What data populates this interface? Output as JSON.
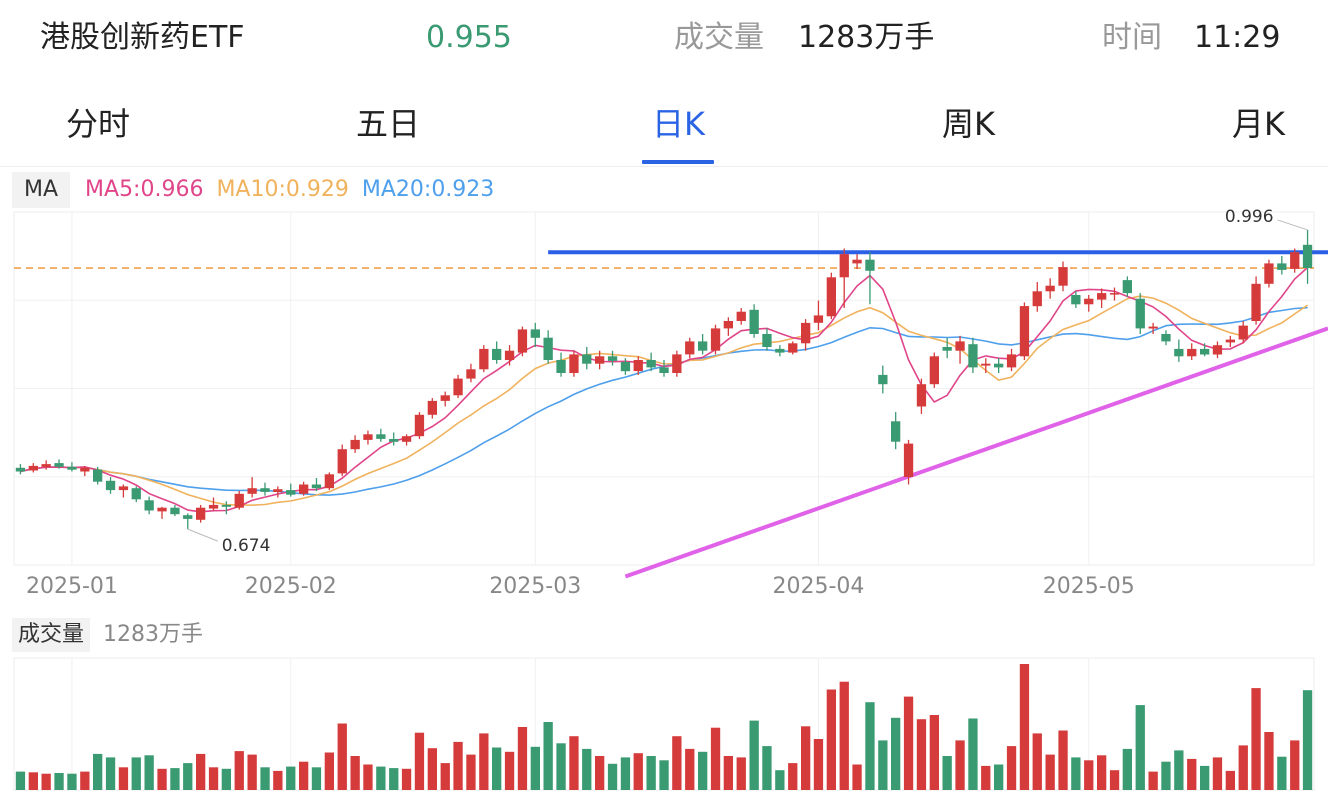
{
  "header": {
    "name": "港股创新药ETF",
    "price": "0.955",
    "volume_label": "成交量",
    "volume_value": "1283万手",
    "time_label": "时间",
    "time_value": "11:29"
  },
  "tabs": [
    {
      "label": "分时",
      "active": false
    },
    {
      "label": "五日",
      "active": false
    },
    {
      "label": "日K",
      "active": true
    },
    {
      "label": "周K",
      "active": false
    },
    {
      "label": "月K",
      "active": false
    }
  ],
  "ma_legend": {
    "tag": "MA",
    "ma5": "MA5:0.966",
    "ma10": "MA10:0.929",
    "ma20": "MA20:0.923"
  },
  "volume_legend": {
    "tag": "成交量",
    "value": "1283万手"
  },
  "colors": {
    "up": "#d63b3b",
    "down": "#3a9a72",
    "price": "#3a9a72",
    "accent": "#2a63e4",
    "ma5": "#e0458a",
    "ma10": "#f0b25c",
    "ma20": "#4e9fec",
    "resistance_line": "#2a5fe6",
    "support_line": "#e062e8",
    "ref_line": "#f0a04b"
  },
  "chart_data": {
    "type": "candlestick",
    "x_ticks": [
      "2025-01",
      "2025-02",
      "2025-03",
      "2025-04",
      "2025-05"
    ],
    "annotations": {
      "high_label": "0.996",
      "low_label": "0.674"
    },
    "ohlc": [
      [
        0.74,
        0.744,
        0.733,
        0.736
      ],
      [
        0.737,
        0.745,
        0.735,
        0.742
      ],
      [
        0.741,
        0.748,
        0.738,
        0.744
      ],
      [
        0.745,
        0.749,
        0.739,
        0.741
      ],
      [
        0.741,
        0.746,
        0.736,
        0.738
      ],
      [
        0.736,
        0.742,
        0.731,
        0.74
      ],
      [
        0.738,
        0.741,
        0.722,
        0.725
      ],
      [
        0.726,
        0.73,
        0.712,
        0.716
      ],
      [
        0.716,
        0.722,
        0.708,
        0.72
      ],
      [
        0.718,
        0.72,
        0.703,
        0.706
      ],
      [
        0.705,
        0.709,
        0.69,
        0.694
      ],
      [
        0.693,
        0.698,
        0.685,
        0.697
      ],
      [
        0.697,
        0.7,
        0.688,
        0.69
      ],
      [
        0.689,
        0.691,
        0.674,
        0.685
      ],
      [
        0.684,
        0.7,
        0.681,
        0.697
      ],
      [
        0.696,
        0.708,
        0.694,
        0.7
      ],
      [
        0.7,
        0.704,
        0.69,
        0.698
      ],
      [
        0.697,
        0.715,
        0.695,
        0.712
      ],
      [
        0.712,
        0.73,
        0.708,
        0.718
      ],
      [
        0.718,
        0.724,
        0.71,
        0.714
      ],
      [
        0.714,
        0.72,
        0.708,
        0.717
      ],
      [
        0.716,
        0.723,
        0.709,
        0.711
      ],
      [
        0.712,
        0.725,
        0.71,
        0.722
      ],
      [
        0.722,
        0.729,
        0.715,
        0.718
      ],
      [
        0.718,
        0.735,
        0.716,
        0.733
      ],
      [
        0.734,
        0.765,
        0.731,
        0.76
      ],
      [
        0.76,
        0.775,
        0.756,
        0.77
      ],
      [
        0.77,
        0.78,
        0.765,
        0.776
      ],
      [
        0.776,
        0.782,
        0.768,
        0.771
      ],
      [
        0.771,
        0.778,
        0.764,
        0.768
      ],
      [
        0.768,
        0.776,
        0.764,
        0.774
      ],
      [
        0.774,
        0.8,
        0.771,
        0.797
      ],
      [
        0.797,
        0.815,
        0.793,
        0.812
      ],
      [
        0.812,
        0.822,
        0.806,
        0.818
      ],
      [
        0.818,
        0.84,
        0.815,
        0.836
      ],
      [
        0.836,
        0.852,
        0.832,
        0.846
      ],
      [
        0.846,
        0.872,
        0.843,
        0.868
      ],
      [
        0.868,
        0.876,
        0.852,
        0.856
      ],
      [
        0.856,
        0.872,
        0.85,
        0.866
      ],
      [
        0.864,
        0.892,
        0.86,
        0.889
      ],
      [
        0.889,
        0.896,
        0.87,
        0.88
      ],
      [
        0.88,
        0.888,
        0.852,
        0.856
      ],
      [
        0.856,
        0.864,
        0.838,
        0.842
      ],
      [
        0.842,
        0.866,
        0.838,
        0.862
      ],
      [
        0.862,
        0.87,
        0.846,
        0.852
      ],
      [
        0.852,
        0.866,
        0.846,
        0.86
      ],
      [
        0.86,
        0.866,
        0.85,
        0.855
      ],
      [
        0.854,
        0.858,
        0.84,
        0.844
      ],
      [
        0.844,
        0.86,
        0.84,
        0.856
      ],
      [
        0.856,
        0.864,
        0.844,
        0.848
      ],
      [
        0.848,
        0.856,
        0.838,
        0.842
      ],
      [
        0.842,
        0.866,
        0.838,
        0.862
      ],
      [
        0.862,
        0.88,
        0.858,
        0.876
      ],
      [
        0.876,
        0.884,
        0.862,
        0.866
      ],
      [
        0.866,
        0.894,
        0.862,
        0.89
      ],
      [
        0.89,
        0.902,
        0.882,
        0.898
      ],
      [
        0.898,
        0.912,
        0.894,
        0.908
      ],
      [
        0.91,
        0.916,
        0.88,
        0.884
      ],
      [
        0.884,
        0.89,
        0.866,
        0.87
      ],
      [
        0.868,
        0.872,
        0.86,
        0.864
      ],
      [
        0.864,
        0.876,
        0.862,
        0.874
      ],
      [
        0.874,
        0.9,
        0.866,
        0.896
      ],
      [
        0.896,
        0.92,
        0.888,
        0.904
      ],
      [
        0.903,
        0.95,
        0.9,
        0.945
      ],
      [
        0.945,
        0.976,
        0.912,
        0.97
      ],
      [
        0.96,
        0.97,
        0.954,
        0.964
      ],
      [
        0.964,
        0.972,
        0.916,
        0.952
      ],
      [
        0.84,
        0.85,
        0.82,
        0.83
      ],
      [
        0.79,
        0.8,
        0.76,
        0.768
      ],
      [
        0.73,
        0.77,
        0.722,
        0.766
      ],
      [
        0.806,
        0.836,
        0.798,
        0.83
      ],
      [
        0.83,
        0.864,
        0.826,
        0.86
      ],
      [
        0.87,
        0.88,
        0.858,
        0.866
      ],
      [
        0.866,
        0.882,
        0.852,
        0.876
      ],
      [
        0.873,
        0.88,
        0.842,
        0.848
      ],
      [
        0.85,
        0.858,
        0.842,
        0.852
      ],
      [
        0.852,
        0.858,
        0.842,
        0.848
      ],
      [
        0.848,
        0.868,
        0.844,
        0.862
      ],
      [
        0.86,
        0.918,
        0.856,
        0.914
      ],
      [
        0.914,
        0.94,
        0.908,
        0.93
      ],
      [
        0.93,
        0.944,
        0.922,
        0.936
      ],
      [
        0.936,
        0.962,
        0.93,
        0.956
      ],
      [
        0.926,
        0.93,
        0.912,
        0.916
      ],
      [
        0.916,
        0.926,
        0.908,
        0.922
      ],
      [
        0.921,
        0.933,
        0.912,
        0.928
      ],
      [
        0.928,
        0.934,
        0.92,
        0.928
      ],
      [
        0.942,
        0.946,
        0.924,
        0.928
      ],
      [
        0.922,
        0.928,
        0.884,
        0.89
      ],
      [
        0.89,
        0.896,
        0.884,
        0.892
      ],
      [
        0.884,
        0.888,
        0.872,
        0.876
      ],
      [
        0.868,
        0.878,
        0.854,
        0.86
      ],
      [
        0.86,
        0.874,
        0.856,
        0.868
      ],
      [
        0.868,
        0.874,
        0.86,
        0.862
      ],
      [
        0.862,
        0.876,
        0.858,
        0.872
      ],
      [
        0.875,
        0.882,
        0.87,
        0.878
      ],
      [
        0.878,
        0.898,
        0.874,
        0.893
      ],
      [
        0.898,
        0.946,
        0.894,
        0.938
      ],
      [
        0.938,
        0.964,
        0.934,
        0.96
      ],
      [
        0.96,
        0.968,
        0.948,
        0.953
      ],
      [
        0.954,
        0.976,
        0.95,
        0.972
      ],
      [
        0.98,
        0.996,
        0.938,
        0.955
      ]
    ]
  }
}
